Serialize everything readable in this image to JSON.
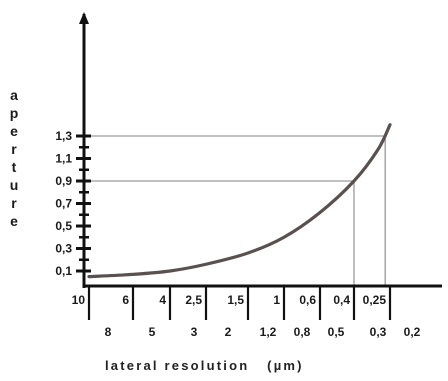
{
  "chart_data": {
    "type": "line",
    "title": "",
    "xlabel": "lateral resolution",
    "xlabel_unit": "(µm)",
    "ylabel": "aperture",
    "ylim": [
      0.05,
      1.42
    ],
    "y_ticks": [
      "0,1",
      "0,3",
      "0,5",
      "0,7",
      "0,9",
      "1,1",
      "1,3"
    ],
    "x_tick_labels_top": [
      "10",
      "6",
      "4",
      "2,5",
      "1,5",
      "1",
      "0,6",
      "0,4",
      "0,25"
    ],
    "x_tick_labels_bottom": [
      "8",
      "5",
      "3",
      "2",
      "1,2",
      "0,8",
      "0,5",
      "0,3",
      "0,2"
    ],
    "series": [
      {
        "values": [
          {
            "x": 10,
            "y": 0.05
          },
          {
            "x": 6,
            "y": 0.07
          },
          {
            "x": 4,
            "y": 0.1
          },
          {
            "x": 2.5,
            "y": 0.16
          },
          {
            "x": 1.5,
            "y": 0.26
          },
          {
            "x": 1,
            "y": 0.4
          },
          {
            "x": 0.6,
            "y": 0.62
          },
          {
            "x": 0.4,
            "y": 0.9
          },
          {
            "x": 0.3,
            "y": 1.18
          },
          {
            "x": 0.25,
            "y": 1.4
          }
        ]
      }
    ],
    "reference_lines": [
      {
        "y": 1.3,
        "x": 0.27
      },
      {
        "y": 0.9,
        "x": 0.4
      }
    ],
    "colors": {
      "curve": "#5a5050",
      "reference": "#9a9a9a",
      "axis": "#111111"
    },
    "grid": false,
    "legend": "none"
  }
}
